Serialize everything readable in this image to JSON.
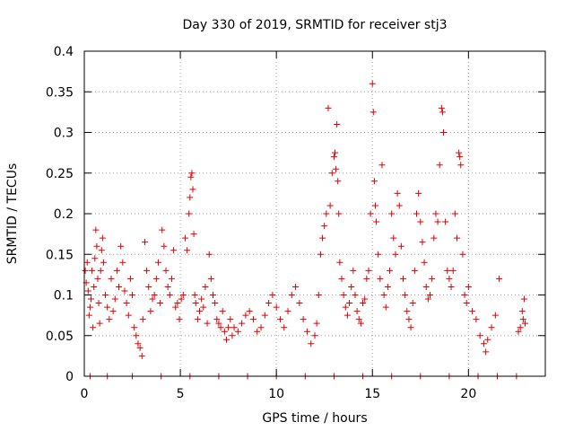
{
  "chart_data": {
    "type": "scatter",
    "title": "Day 330 of 2019, SRMTID for receiver stj3",
    "xlabel": "GPS time / hours",
    "ylabel": "SRMTID / TECUs",
    "xlim": [
      0,
      24
    ],
    "ylim": [
      0,
      0.4
    ],
    "xticks": [
      0,
      5,
      10,
      15,
      20
    ],
    "yticks": [
      0,
      0.05,
      0.1,
      0.15,
      0.2,
      0.25,
      0.3,
      0.35,
      0.4
    ],
    "ytick_labels": [
      "0",
      "0.05",
      "0.1",
      "0.15",
      "0.2",
      "0.25",
      "0.3",
      "0.35",
      "0.4"
    ],
    "grid": true,
    "marker": "+",
    "color": "#e00000",
    "series": [
      {
        "name": "SRMTID",
        "points": [
          [
            0.05,
            0.13
          ],
          [
            0.1,
            0.115
          ],
          [
            0.15,
            0.14
          ],
          [
            0.2,
            0.105
          ],
          [
            0.25,
            0.075
          ],
          [
            0.3,
            0.085
          ],
          [
            0.35,
            0.095
          ],
          [
            0.4,
            0.13
          ],
          [
            0.45,
            0.06
          ],
          [
            0.5,
            0.11
          ],
          [
            0.55,
            0.145
          ],
          [
            0.6,
            0.18
          ],
          [
            0.65,
            0.16
          ],
          [
            0.7,
            0.12
          ],
          [
            0.75,
            0.09
          ],
          [
            0.8,
            0.065
          ],
          [
            0.85,
            0.13
          ],
          [
            0.9,
            0.155
          ],
          [
            0.95,
            0.17
          ],
          [
            1.0,
            0.14
          ],
          [
            1.1,
            0.1
          ],
          [
            1.2,
            0.085
          ],
          [
            1.3,
            0.07
          ],
          [
            1.4,
            0.12
          ],
          [
            1.5,
            0.08
          ],
          [
            1.6,
            0.095
          ],
          [
            1.7,
            0.13
          ],
          [
            1.8,
            0.11
          ],
          [
            1.9,
            0.16
          ],
          [
            2.0,
            0.14
          ],
          [
            2.1,
            0.105
          ],
          [
            2.2,
            0.09
          ],
          [
            2.3,
            0.075
          ],
          [
            2.4,
            0.12
          ],
          [
            2.5,
            0.1
          ],
          [
            2.6,
            0.06
          ],
          [
            2.7,
            0.05
          ],
          [
            2.8,
            0.04
          ],
          [
            2.9,
            0.035
          ],
          [
            3.0,
            0.025
          ],
          [
            3.05,
            0.07
          ],
          [
            3.15,
            0.165
          ],
          [
            3.25,
            0.13
          ],
          [
            3.35,
            0.11
          ],
          [
            3.45,
            0.08
          ],
          [
            3.55,
            0.095
          ],
          [
            3.65,
            0.1
          ],
          [
            3.75,
            0.12
          ],
          [
            3.85,
            0.14
          ],
          [
            3.95,
            0.09
          ],
          [
            4.05,
            0.18
          ],
          [
            4.15,
            0.16
          ],
          [
            4.25,
            0.13
          ],
          [
            4.35,
            0.11
          ],
          [
            4.45,
            0.1
          ],
          [
            4.55,
            0.12
          ],
          [
            4.65,
            0.155
          ],
          [
            4.75,
            0.085
          ],
          [
            4.85,
            0.09
          ],
          [
            4.95,
            0.07
          ],
          [
            5.05,
            0.095
          ],
          [
            5.15,
            0.1
          ],
          [
            5.25,
            0.17
          ],
          [
            5.35,
            0.155
          ],
          [
            5.45,
            0.2
          ],
          [
            5.5,
            0.22
          ],
          [
            5.55,
            0.245
          ],
          [
            5.6,
            0.25
          ],
          [
            5.65,
            0.23
          ],
          [
            5.7,
            0.175
          ],
          [
            5.75,
            0.1
          ],
          [
            5.8,
            0.09
          ],
          [
            5.9,
            0.07
          ],
          [
            6.0,
            0.08
          ],
          [
            6.1,
            0.095
          ],
          [
            6.2,
            0.085
          ],
          [
            6.3,
            0.11
          ],
          [
            6.4,
            0.065
          ],
          [
            6.5,
            0.15
          ],
          [
            6.6,
            0.12
          ],
          [
            6.7,
            0.1
          ],
          [
            6.8,
            0.09
          ],
          [
            6.9,
            0.07
          ],
          [
            7.0,
            0.065
          ],
          [
            7.1,
            0.06
          ],
          [
            7.2,
            0.08
          ],
          [
            7.3,
            0.055
          ],
          [
            7.4,
            0.045
          ],
          [
            7.5,
            0.06
          ],
          [
            7.6,
            0.07
          ],
          [
            7.7,
            0.05
          ],
          [
            7.8,
            0.06
          ],
          [
            8.0,
            0.055
          ],
          [
            8.2,
            0.065
          ],
          [
            8.4,
            0.075
          ],
          [
            8.6,
            0.08
          ],
          [
            8.8,
            0.07
          ],
          [
            9.0,
            0.055
          ],
          [
            9.2,
            0.06
          ],
          [
            9.4,
            0.075
          ],
          [
            9.6,
            0.09
          ],
          [
            9.8,
            0.1
          ],
          [
            10.0,
            0.085
          ],
          [
            10.2,
            0.07
          ],
          [
            10.4,
            0.06
          ],
          [
            10.6,
            0.08
          ],
          [
            10.8,
            0.1
          ],
          [
            11.0,
            0.11
          ],
          [
            11.2,
            0.09
          ],
          [
            11.4,
            0.07
          ],
          [
            11.6,
            0.055
          ],
          [
            11.8,
            0.04
          ],
          [
            12.0,
            0.05
          ],
          [
            12.1,
            0.065
          ],
          [
            12.2,
            0.1
          ],
          [
            12.3,
            0.15
          ],
          [
            12.4,
            0.17
          ],
          [
            12.5,
            0.185
          ],
          [
            12.6,
            0.2
          ],
          [
            12.7,
            0.33
          ],
          [
            12.8,
            0.21
          ],
          [
            12.9,
            0.25
          ],
          [
            13.0,
            0.27
          ],
          [
            13.05,
            0.275
          ],
          [
            13.1,
            0.255
          ],
          [
            13.15,
            0.31
          ],
          [
            13.2,
            0.24
          ],
          [
            13.25,
            0.2
          ],
          [
            13.3,
            0.14
          ],
          [
            13.4,
            0.12
          ],
          [
            13.5,
            0.1
          ],
          [
            13.6,
            0.085
          ],
          [
            13.7,
            0.075
          ],
          [
            13.8,
            0.09
          ],
          [
            13.9,
            0.11
          ],
          [
            14.0,
            0.13
          ],
          [
            14.1,
            0.1
          ],
          [
            14.2,
            0.08
          ],
          [
            14.3,
            0.07
          ],
          [
            14.4,
            0.065
          ],
          [
            14.5,
            0.09
          ],
          [
            14.6,
            0.095
          ],
          [
            14.7,
            0.12
          ],
          [
            14.8,
            0.13
          ],
          [
            14.9,
            0.2
          ],
          [
            15.0,
            0.36
          ],
          [
            15.05,
            0.325
          ],
          [
            15.1,
            0.24
          ],
          [
            15.15,
            0.21
          ],
          [
            15.2,
            0.19
          ],
          [
            15.3,
            0.15
          ],
          [
            15.4,
            0.12
          ],
          [
            15.5,
            0.26
          ],
          [
            15.6,
            0.1
          ],
          [
            15.7,
            0.085
          ],
          [
            15.8,
            0.11
          ],
          [
            15.9,
            0.13
          ],
          [
            16.0,
            0.2
          ],
          [
            16.1,
            0.17
          ],
          [
            16.2,
            0.15
          ],
          [
            16.3,
            0.225
          ],
          [
            16.4,
            0.21
          ],
          [
            16.5,
            0.16
          ],
          [
            16.6,
            0.12
          ],
          [
            16.7,
            0.1
          ],
          [
            16.8,
            0.08
          ],
          [
            16.9,
            0.07
          ],
          [
            17.0,
            0.06
          ],
          [
            17.1,
            0.09
          ],
          [
            17.2,
            0.13
          ],
          [
            17.3,
            0.2
          ],
          [
            17.4,
            0.225
          ],
          [
            17.5,
            0.19
          ],
          [
            17.6,
            0.165
          ],
          [
            17.7,
            0.14
          ],
          [
            17.8,
            0.11
          ],
          [
            17.9,
            0.095
          ],
          [
            18.0,
            0.1
          ],
          [
            18.1,
            0.12
          ],
          [
            18.2,
            0.17
          ],
          [
            18.3,
            0.2
          ],
          [
            18.4,
            0.19
          ],
          [
            18.5,
            0.26
          ],
          [
            18.6,
            0.33
          ],
          [
            18.65,
            0.325
          ],
          [
            18.7,
            0.3
          ],
          [
            18.8,
            0.19
          ],
          [
            18.9,
            0.13
          ],
          [
            19.0,
            0.12
          ],
          [
            19.1,
            0.11
          ],
          [
            19.2,
            0.13
          ],
          [
            19.3,
            0.2
          ],
          [
            19.4,
            0.17
          ],
          [
            19.5,
            0.275
          ],
          [
            19.55,
            0.27
          ],
          [
            19.6,
            0.26
          ],
          [
            19.7,
            0.15
          ],
          [
            19.8,
            0.1
          ],
          [
            19.9,
            0.09
          ],
          [
            20.0,
            0.11
          ],
          [
            20.2,
            0.08
          ],
          [
            20.4,
            0.07
          ],
          [
            20.6,
            0.05
          ],
          [
            20.8,
            0.04
          ],
          [
            20.9,
            0.03
          ],
          [
            21.0,
            0.045
          ],
          [
            21.2,
            0.06
          ],
          [
            21.4,
            0.075
          ],
          [
            21.6,
            0.12
          ],
          [
            22.6,
            0.055
          ],
          [
            22.7,
            0.06
          ],
          [
            22.8,
            0.08
          ],
          [
            22.85,
            0.07
          ],
          [
            22.9,
            0.095
          ],
          [
            22.95,
            0.065
          ],
          [
            0.3,
            0.0
          ],
          [
            1.2,
            0.0
          ],
          [
            2.5,
            0.0
          ],
          [
            4.0,
            0.0
          ],
          [
            5.5,
            0.0
          ],
          [
            7.0,
            0.0
          ],
          [
            8.5,
            0.0
          ],
          [
            10.0,
            0.0
          ],
          [
            11.5,
            0.0
          ],
          [
            13.0,
            0.0
          ],
          [
            14.5,
            0.0
          ],
          [
            16.0,
            0.0
          ],
          [
            17.5,
            0.0
          ],
          [
            19.0,
            0.0
          ],
          [
            20.5,
            0.0
          ],
          [
            21.5,
            0.0
          ],
          [
            22.5,
            0.0
          ]
        ]
      }
    ]
  }
}
